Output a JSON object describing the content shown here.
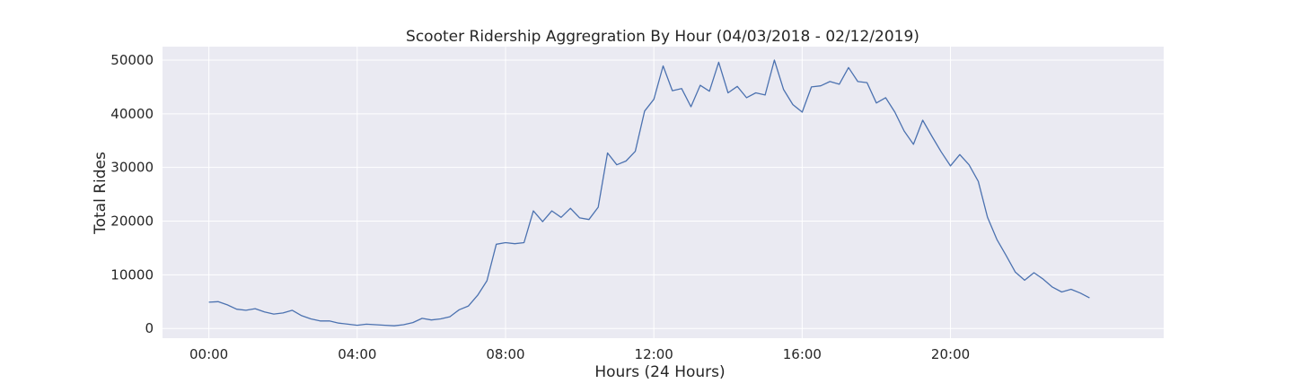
{
  "chart_data": {
    "type": "line",
    "title": "Scooter Ridership Aggregration By Hour (04/03/2018 - 02/12/2019)",
    "xlabel": "Hours (24 Hours)",
    "ylabel": "Total Rides",
    "x_unit": "minutes since midnight",
    "xlim": [
      -75,
      1545
    ],
    "ylim": [
      -1800,
      52500
    ],
    "x_ticks": [
      0,
      240,
      480,
      720,
      960,
      1200
    ],
    "x_tick_labels": [
      "00:00",
      "04:00",
      "08:00",
      "12:00",
      "16:00",
      "20:00"
    ],
    "y_ticks": [
      0,
      10000,
      20000,
      30000,
      40000,
      50000
    ],
    "y_tick_labels": [
      "0",
      "10000",
      "20000",
      "30000",
      "40000",
      "50000"
    ],
    "grid": true,
    "colors": {
      "plot_background": "#eaeaf2",
      "grid": "#ffffff",
      "line": "#4c72b0"
    },
    "series": [
      {
        "x": [
          0,
          15,
          30,
          45,
          60,
          75,
          90,
          105,
          120,
          135,
          150,
          165,
          180,
          195,
          210,
          225,
          240,
          255,
          270,
          285,
          300,
          315,
          330,
          345,
          360,
          375,
          390,
          405,
          420,
          435,
          450,
          465,
          480,
          495,
          510,
          525,
          540,
          555,
          570,
          585,
          600,
          615,
          630,
          645,
          660,
          675,
          690,
          705,
          720,
          735,
          750,
          765,
          780,
          795,
          810,
          825,
          840,
          855,
          870,
          885,
          900,
          915,
          930,
          945,
          960,
          975,
          990,
          1005,
          1020,
          1035,
          1050,
          1065,
          1080,
          1095,
          1110,
          1125,
          1140,
          1155,
          1170,
          1185,
          1200,
          1215,
          1230,
          1245,
          1260,
          1275,
          1290,
          1305,
          1320,
          1335,
          1350,
          1365,
          1380,
          1395,
          1410,
          1425
        ],
        "values": [
          4900,
          5000,
          4400,
          3600,
          3400,
          3700,
          3100,
          2700,
          2900,
          3400,
          2400,
          1800,
          1400,
          1400,
          1000,
          800,
          600,
          800,
          700,
          600,
          500,
          700,
          1100,
          1900,
          1600,
          1800,
          2200,
          3500,
          4200,
          6200,
          8900,
          15700,
          16000,
          15800,
          16000,
          21900,
          19900,
          21900,
          20700,
          22400,
          20600,
          20300,
          22600,
          32700,
          30500,
          31200,
          33000,
          40500,
          42700,
          48900,
          44300,
          44700,
          41300,
          45300,
          44200,
          49600,
          43900,
          45100,
          43000,
          43900,
          43500,
          50000,
          44500,
          41700,
          40300,
          45000,
          45200,
          46000,
          45500,
          48600,
          46000,
          45800,
          42000,
          43000,
          40300,
          36800,
          34300,
          38800,
          35800,
          32900,
          30300,
          32400,
          30500,
          27400,
          20700,
          16600,
          13600,
          10500,
          9000,
          10400,
          9200,
          7700,
          6800,
          7300,
          6600,
          5700
        ]
      }
    ]
  }
}
